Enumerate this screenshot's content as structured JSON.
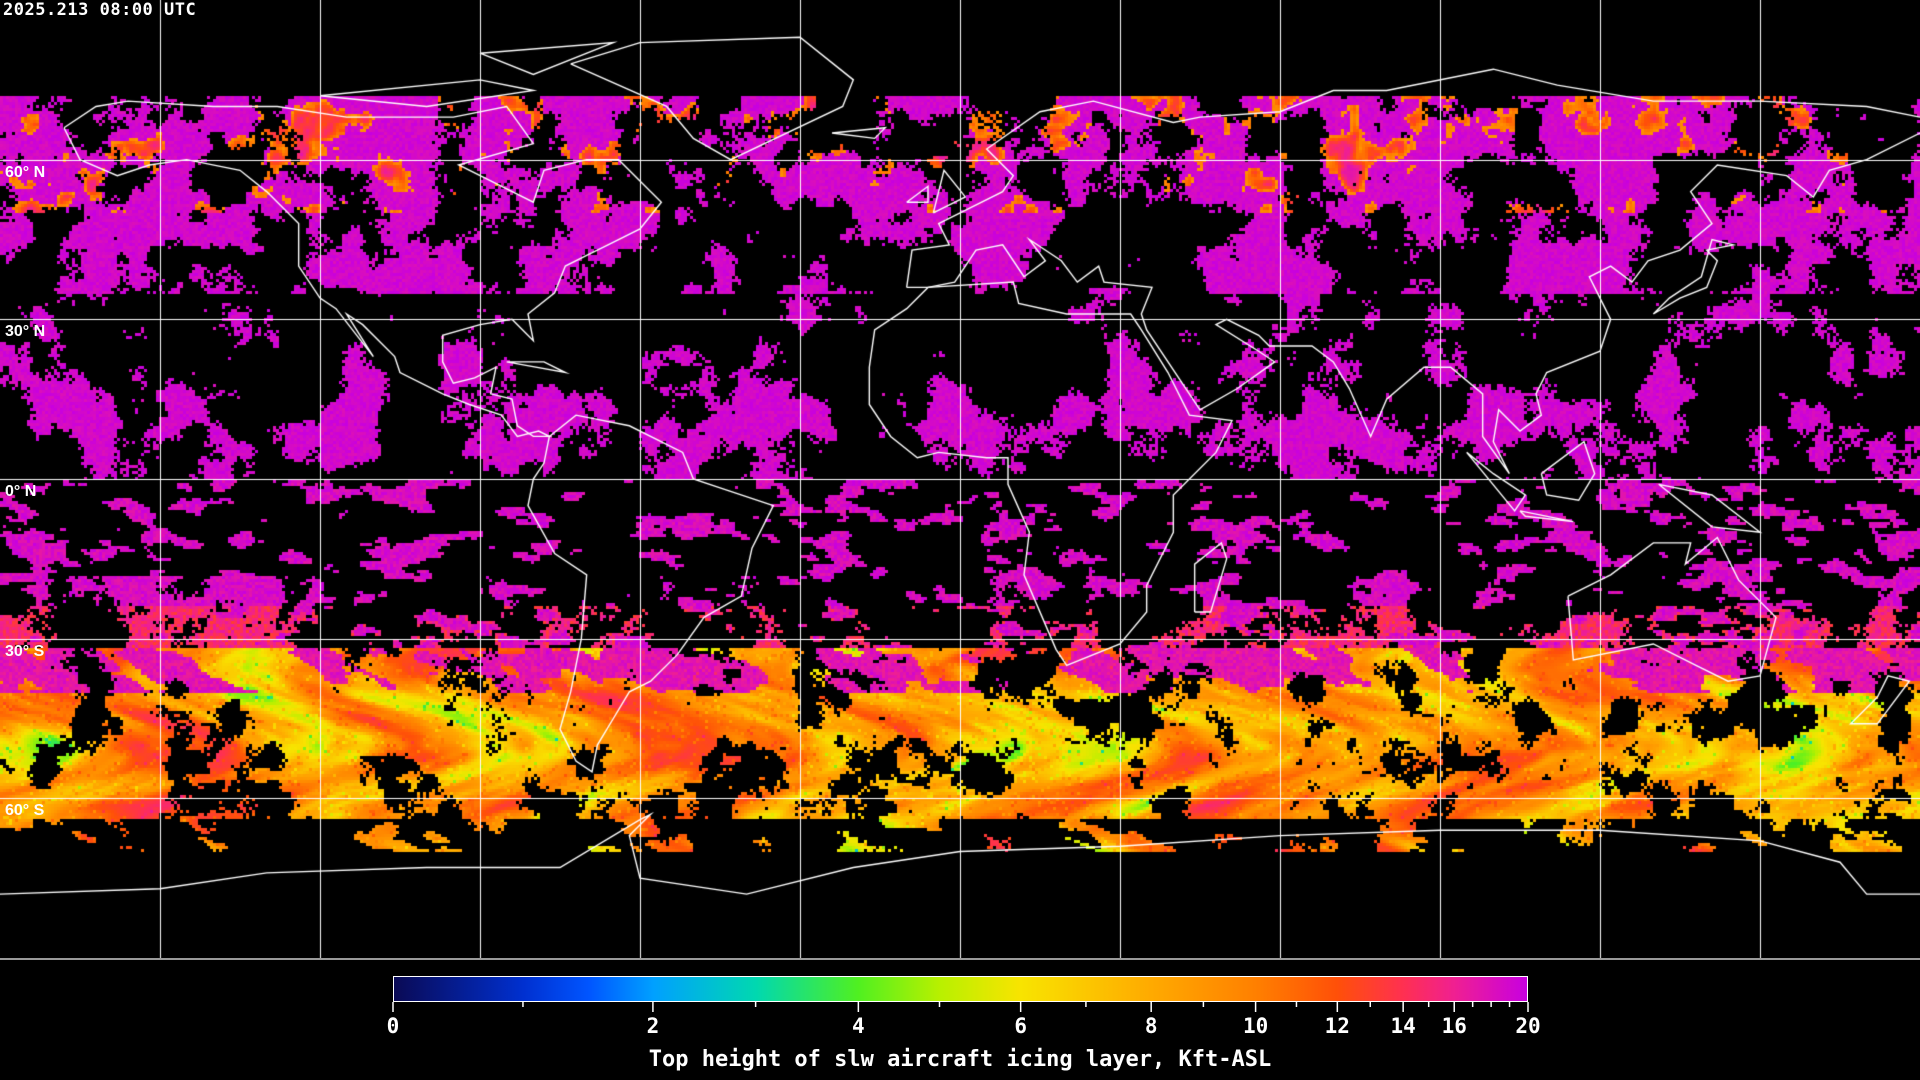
{
  "header": {
    "timestamp": "2025.213 08:00 UTC"
  },
  "map": {
    "projection": "equirectangular",
    "lon_range": [
      -180,
      180
    ],
    "lat_range": [
      -90,
      90
    ],
    "graticule_spacing_deg": 30,
    "graticule_color": "#ffffff",
    "coastline_color": "#ffffff",
    "background": "#000000",
    "lat_labels": [
      {
        "lat": 60,
        "text": "60° N"
      },
      {
        "lat": 30,
        "text": "30° N"
      },
      {
        "lat": 0,
        "text": "0° N"
      },
      {
        "lat": -30,
        "text": "30° S"
      },
      {
        "lat": -60,
        "text": "60° S"
      }
    ]
  },
  "colorbar": {
    "title": "Top height of slw aircraft icing layer, Kft-ASL",
    "range": [
      0,
      20
    ],
    "major_ticks": [
      {
        "value": 0,
        "label": "0"
      },
      {
        "value": 2,
        "label": "2"
      },
      {
        "value": 4,
        "label": "4"
      },
      {
        "value": 6,
        "label": "6"
      },
      {
        "value": 8,
        "label": "8"
      },
      {
        "value": 10,
        "label": "10"
      },
      {
        "value": 12,
        "label": "12"
      },
      {
        "value": 14,
        "label": "14"
      },
      {
        "value": 16,
        "label": "16"
      },
      {
        "value": 20,
        "label": "20"
      }
    ],
    "minor_ticks": [
      1,
      3,
      5,
      7,
      9,
      11,
      13,
      15,
      17,
      18,
      19
    ],
    "color_stops": [
      {
        "value": 0,
        "color": "#0a0a55"
      },
      {
        "value": 1,
        "color": "#0030d0"
      },
      {
        "value": 1.5,
        "color": "#0055ff"
      },
      {
        "value": 2,
        "color": "#00a0ff"
      },
      {
        "value": 3,
        "color": "#00d8b0"
      },
      {
        "value": 4,
        "color": "#50f020"
      },
      {
        "value": 5,
        "color": "#b8f000"
      },
      {
        "value": 6,
        "color": "#f8e400"
      },
      {
        "value": 8,
        "color": "#ffaa00"
      },
      {
        "value": 10,
        "color": "#ff8000"
      },
      {
        "value": 12,
        "color": "#ff5008"
      },
      {
        "value": 14,
        "color": "#ff3050"
      },
      {
        "value": 16,
        "color": "#f02090"
      },
      {
        "value": 20,
        "color": "#c800e0"
      }
    ]
  }
}
